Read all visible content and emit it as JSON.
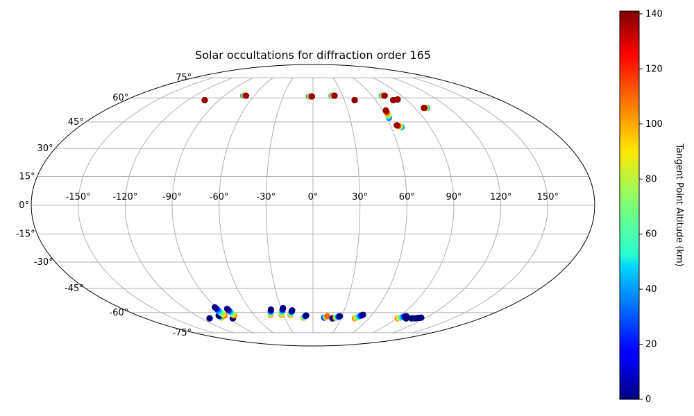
{
  "chart_data": {
    "type": "scatter",
    "projection": "mollweide",
    "title": "Solar occultations for diffraction order 165",
    "grid": true,
    "longitude_ticks": [
      "-150°",
      "-120°",
      "-90°",
      "-60°",
      "-30°",
      "0°",
      "30°",
      "60°",
      "90°",
      "120°",
      "150°"
    ],
    "longitude_tick_values": [
      -150,
      -120,
      -90,
      -60,
      -30,
      0,
      30,
      60,
      90,
      120,
      150
    ],
    "latitude_ticks": [
      "-75°",
      "-60°",
      "-45°",
      "-30°",
      "-15°",
      "0°",
      "15°",
      "30°",
      "45°",
      "60°",
      "75°"
    ],
    "latitude_tick_values": [
      -75,
      -60,
      -45,
      -30,
      -15,
      0,
      15,
      30,
      45,
      60,
      75
    ],
    "colorbar": {
      "label": "Tangent Point Altitude (km)",
      "colormap": "jet",
      "range": [
        0,
        141
      ],
      "ticks": [
        "0",
        "20",
        "40",
        "60",
        "80",
        "100",
        "120",
        "140"
      ],
      "tick_values": [
        0,
        20,
        40,
        60,
        80,
        100,
        120,
        140
      ]
    },
    "tracks": [
      {
        "lon_start": -104,
        "lat_start": 58.5,
        "lon_end": -104,
        "lat_end": 58.5,
        "alt_start": 138,
        "alt_end": 138
      },
      {
        "lon_start": -71,
        "lat_start": 61.5,
        "lon_end": -68,
        "lat_end": 61.5,
        "alt_start": 30,
        "alt_end": 138
      },
      {
        "lon_start": -4,
        "lat_start": 61.0,
        "lon_end": -1,
        "lat_end": 61.0,
        "alt_start": 30,
        "alt_end": 138
      },
      {
        "lon_start": 19,
        "lat_start": 61.5,
        "lon_end": 22,
        "lat_end": 61.5,
        "alt_start": 30,
        "alt_end": 138
      },
      {
        "lon_start": 40,
        "lat_start": 58.5,
        "lon_end": 40,
        "lat_end": 58.5,
        "alt_start": 138,
        "alt_end": 138
      },
      {
        "lon_start": 70,
        "lat_start": 61.5,
        "lon_end": 73,
        "lat_end": 61.5,
        "alt_start": 30,
        "alt_end": 138
      },
      {
        "lon_start": 77,
        "lat_start": 58.5,
        "lon_end": 77,
        "lat_end": 58.5,
        "alt_start": 138,
        "alt_end": 138
      },
      {
        "lon_start": 82,
        "lat_start": 59.0,
        "lon_end": 82,
        "lat_end": 59.0,
        "alt_start": 138,
        "alt_end": 138
      },
      {
        "lon_start": 101,
        "lat_start": 53.5,
        "lon_end": 98,
        "lat_end": 53.5,
        "alt_start": 30,
        "alt_end": 138
      },
      {
        "lon_start": 62,
        "lat_start": 47.5,
        "lon_end": 63,
        "lat_end": 52.0,
        "alt_start": 30,
        "alt_end": 138
      },
      {
        "lon_start": 68,
        "lat_start": 42.0,
        "lon_end": 65,
        "lat_end": 43.0,
        "alt_start": 30,
        "alt_end": 138
      },
      {
        "lon_start": -111,
        "lat_start": -64.0,
        "lon_end": -111,
        "lat_end": -64.0,
        "alt_start": 0,
        "alt_end": 0
      },
      {
        "lon_start": -97,
        "lat_start": -63.5,
        "lon_end": -97,
        "lat_end": -62.0,
        "alt_start": 100,
        "alt_end": 0
      },
      {
        "lon_start": -91,
        "lat_start": -62.0,
        "lon_end": -91,
        "lat_end": -56.5,
        "alt_start": 110,
        "alt_end": 0
      },
      {
        "lon_start": -86,
        "lat_start": -64.0,
        "lon_end": -86,
        "lat_end": -64.0,
        "alt_start": 0,
        "alt_end": 0
      },
      {
        "lon_start": -81,
        "lat_start": -62.0,
        "lon_end": -81,
        "lat_end": -57.5,
        "alt_start": 110,
        "alt_end": 0
      },
      {
        "lon_start": -43,
        "lat_start": -61.5,
        "lon_end": -40,
        "lat_end": -58.0,
        "alt_start": 110,
        "alt_end": 0
      },
      {
        "lon_start": -32,
        "lat_start": -61.5,
        "lon_end": -28,
        "lat_end": -57.0,
        "alt_start": 110,
        "alt_end": 0
      },
      {
        "lon_start": -23,
        "lat_start": -61.5,
        "lon_end": -20,
        "lat_end": -58.5,
        "alt_start": 110,
        "alt_end": 0
      },
      {
        "lon_start": -10,
        "lat_start": -63.5,
        "lon_end": -7,
        "lat_end": -62.0,
        "alt_start": 110,
        "alt_end": 0
      },
      {
        "lon_start": 12,
        "lat_start": -63.5,
        "lon_end": 15,
        "lat_end": -62.5,
        "alt_start": 0,
        "alt_end": 110
      },
      {
        "lon_start": 21,
        "lat_start": -64.0,
        "lon_end": 21,
        "lat_end": -64.0,
        "alt_start": 0,
        "alt_end": 0
      },
      {
        "lon_start": 24,
        "lat_start": -63.5,
        "lon_end": 28,
        "lat_end": -62.5,
        "alt_start": 110,
        "alt_end": 0
      },
      {
        "lon_start": 45,
        "lat_start": -64.0,
        "lon_end": 51,
        "lat_end": -61.5,
        "alt_start": 110,
        "alt_end": 0
      },
      {
        "lon_start": 91,
        "lat_start": -64.0,
        "lon_end": 97,
        "lat_end": -62.5,
        "alt_start": 110,
        "alt_end": 0
      },
      {
        "lon_start": 100,
        "lat_start": -64.0,
        "lon_end": 100,
        "lat_end": -64.0,
        "alt_start": 0,
        "alt_end": 0
      },
      {
        "lon_start": 106,
        "lat_start": -64.0,
        "lon_end": 106,
        "lat_end": -64.0,
        "alt_start": 0,
        "alt_end": 0
      },
      {
        "lon_start": 109,
        "lat_start": -64.0,
        "lon_end": 115,
        "lat_end": -63.5,
        "alt_start": 0,
        "alt_end": 0
      }
    ]
  }
}
